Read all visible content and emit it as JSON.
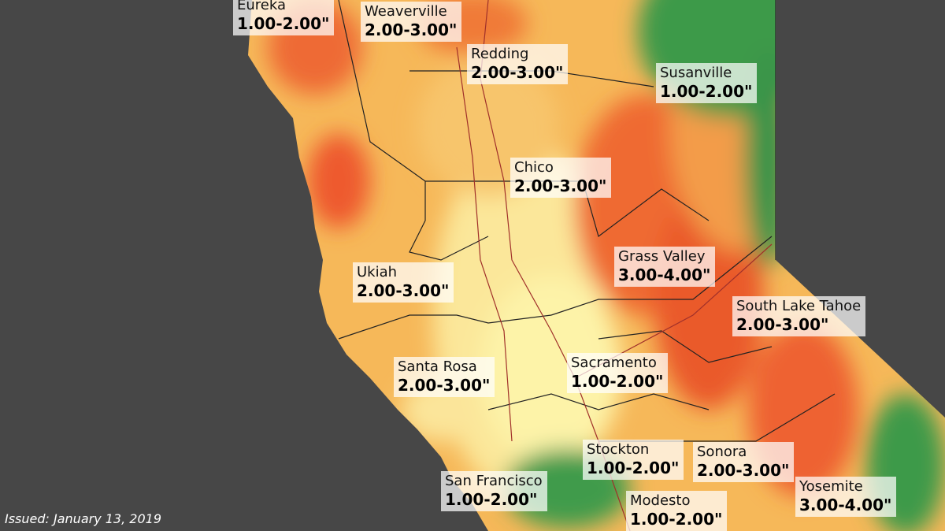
{
  "issued": "Issued: January 13, 2019",
  "labels": [
    {
      "city": "Eureka",
      "range": "1.00-2.00\""
    },
    {
      "city": "Weaverville",
      "range": "2.00-3.00\""
    },
    {
      "city": "Redding",
      "range": "2.00-3.00\""
    },
    {
      "city": "Susanville",
      "range": "1.00-2.00\""
    },
    {
      "city": "Chico",
      "range": "2.00-3.00\""
    },
    {
      "city": "Grass Valley",
      "range": "3.00-4.00\""
    },
    {
      "city": "Ukiah",
      "range": "2.00-3.00\""
    },
    {
      "city": "South Lake Tahoe",
      "range": "2.00-3.00\""
    },
    {
      "city": "Santa Rosa",
      "range": "2.00-3.00\""
    },
    {
      "city": "Sacramento",
      "range": "1.00-2.00\""
    },
    {
      "city": "Stockton",
      "range": "1.00-2.00\""
    },
    {
      "city": "Sonora",
      "range": "2.00-3.00\""
    },
    {
      "city": "San Francisco",
      "range": "1.00-2.00\""
    },
    {
      "city": "Modesto",
      "range": "1.00-2.00\""
    },
    {
      "city": "Yosemite",
      "range": "3.00-4.00\""
    }
  ]
}
